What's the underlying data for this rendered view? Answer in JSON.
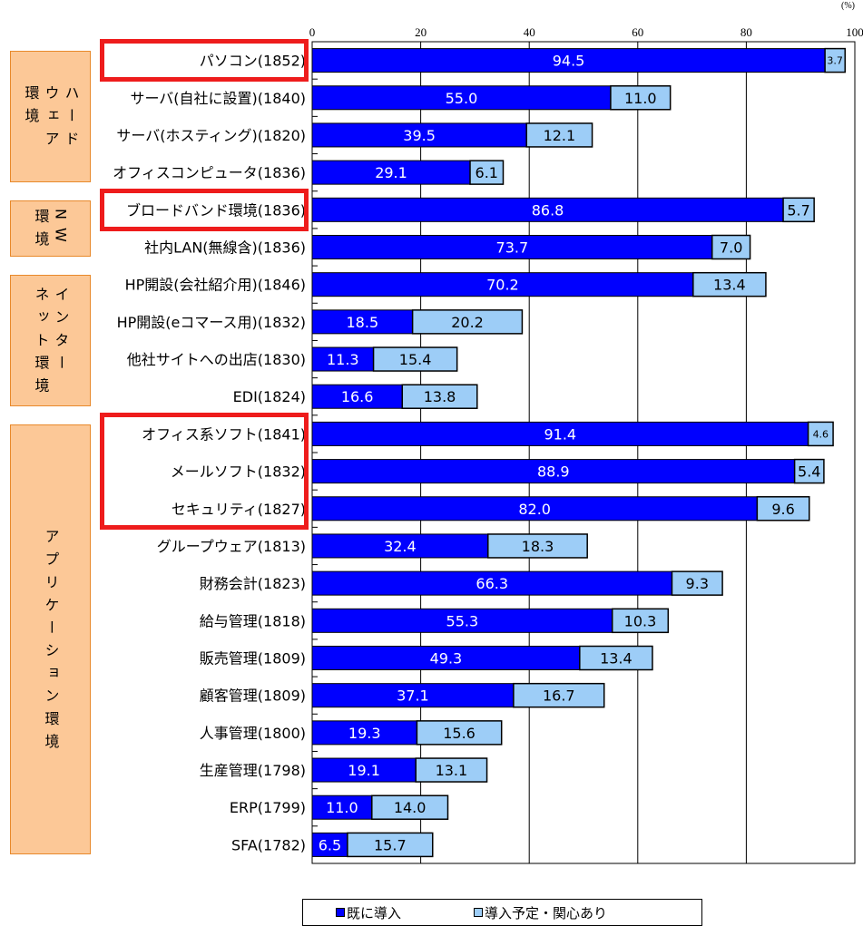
{
  "chart_data": {
    "type": "bar",
    "orientation": "horizontal",
    "stacked": true,
    "unit_label": "(%)",
    "x_ticks": [
      "0",
      "20",
      "40",
      "60",
      "80",
      "100"
    ],
    "xlim": [
      0,
      100
    ],
    "grid": true,
    "legend_position": "bottom",
    "categories": [
      "パソコン(1852)",
      "サーバ(自社に設置)(1840)",
      "サーバ(ホスティング)(1820)",
      "オフィスコンピュータ(1836)",
      "ブロードバンド環境(1836)",
      "社内LAN(無線含)(1836)",
      "HP開設(会社紹介用)(1846)",
      "HP開設(eコマース用)(1832)",
      "他社サイトへの出店(1830)",
      "EDI(1824)",
      "オフィス系ソフト(1841)",
      "メールソフト(1832)",
      "セキュリティ(1827)",
      "グループウェア(1813)",
      "財務会計(1823)",
      "給与管理(1818)",
      "販売管理(1809)",
      "顧客管理(1809)",
      "人事管理(1800)",
      "生産管理(1798)",
      "ERP(1799)",
      "SFA(1782)"
    ],
    "series": [
      {
        "name": "既に導入",
        "color": "#0000ff",
        "values": [
          94.5,
          55.0,
          39.5,
          29.1,
          86.8,
          73.7,
          70.2,
          18.5,
          11.3,
          16.6,
          91.4,
          88.9,
          82.0,
          32.4,
          66.3,
          55.3,
          49.3,
          37.1,
          19.3,
          19.1,
          11.0,
          6.5
        ],
        "labels": [
          "94.5",
          "55.0",
          "39.5",
          "29.1",
          "86.8",
          "73.7",
          "70.2",
          "18.5",
          "11.3",
          "16.6",
          "91.4",
          "88.9",
          "82.0",
          "32.4",
          "66.3",
          "55.3",
          "49.3",
          "37.1",
          "19.3",
          "19.1",
          "11.0",
          "6.5"
        ]
      },
      {
        "name": "導入予定・関心あり",
        "color": "#9dcdf7",
        "values": [
          3.7,
          11.0,
          12.1,
          6.1,
          5.7,
          7.0,
          13.4,
          20.2,
          15.4,
          13.8,
          4.6,
          5.4,
          9.6,
          18.3,
          9.3,
          10.3,
          13.4,
          16.7,
          15.6,
          13.1,
          14.0,
          15.7
        ],
        "labels": [
          "3.7",
          "11.0",
          "12.1",
          "6.1",
          "5.7",
          "7.0",
          "13.4",
          "20.2",
          "15.4",
          "13.8",
          "4.6",
          "5.4",
          "9.6",
          "18.3",
          "9.3",
          "10.3",
          "13.4",
          "16.7",
          "15.6",
          "13.1",
          "14.0",
          "15.7"
        ]
      }
    ],
    "groups": [
      {
        "label": "ハード\nウェア\n環境",
        "display": "ハ ー ド\nウ ェ ア\n環 境",
        "first": 0,
        "last": 3
      },
      {
        "label": "NW\n環境",
        "display": "N W\n環 境",
        "first": 4,
        "last": 5
      },
      {
        "label": "インター\nネット環境",
        "display": "イ ン タ ー\nネ ッ ト 環 境",
        "first": 6,
        "last": 9
      },
      {
        "label": "アプリケーション環境",
        "display": "ア プ リ ケ ー シ ョ ン 環 境",
        "first": 10,
        "last": 21
      }
    ],
    "highlighted": [
      [
        0,
        0
      ],
      [
        4,
        4
      ],
      [
        10,
        12
      ]
    ],
    "highlight_color": "#ee1c1c",
    "group_fill": "#fcc897",
    "group_border": "#e8892b"
  }
}
